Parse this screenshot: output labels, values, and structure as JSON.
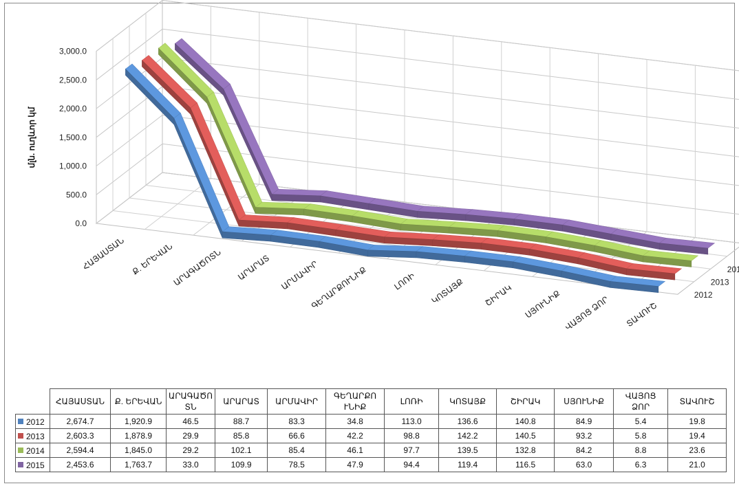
{
  "chart_data": {
    "type": "line",
    "subtype": "3d-line",
    "title": "",
    "ylabel": "մլն. ուղևոր կմ",
    "ylim": [
      0,
      3000
    ],
    "yticks": [
      "0.0",
      "500.0",
      "1,000.0",
      "1,500.0",
      "2,000.0",
      "2,500.0",
      "3,000.0"
    ],
    "ytick_values": [
      0,
      500,
      1000,
      1500,
      2000,
      2500,
      3000
    ],
    "categories": [
      "ՀԱՅԱՍՏԱՆ",
      "Ք. ԵՐԵՎԱՆ",
      "ԱՐԱԳԱԾՈՏՆ",
      "ԱՐԱՐԱՏ",
      "ԱՐՄԱՎԻՐ",
      "ԳԵՂԱՐՔՈՒՆԻՔ",
      "ԼՈՌԻ",
      "ԿՈՏԱՅՔ",
      "ՇԻՐԱԿ",
      "ՍՅՈՒՆԻՔ",
      "ՎԱՅՈՑ ՁՈՐ",
      "ՏԱՎՈՒՇ"
    ],
    "table_headers": [
      "ՀԱՅԱՍՏԱՆ",
      "Ք. ԵՐԵՎԱՆ",
      "ԱՐԱԳԱԾՈ ՏՆ",
      "ԱՐԱՐԱՏ",
      "ԱՐՄԱՎԻՐ",
      "ԳԵՂԱՐՔՈ ՒՆԻՔ",
      "ԼՈՌԻ",
      "ԿՈՏԱՅՔ",
      "ՇԻՐԱԿ",
      "ՍՅՈՒՆԻՔ",
      "ՎԱՅՈՑ ՁՈՐ",
      "ՏԱՎՈՒՇ"
    ],
    "grid": true,
    "legend": "table",
    "series": [
      {
        "name": "2012",
        "color": "#4F81BD",
        "values": [
          2674.7,
          1920.9,
          46.5,
          88.7,
          83.3,
          34.8,
          113.0,
          136.6,
          140.8,
          84.9,
          5.4,
          19.8
        ],
        "labels": [
          "2,674.7",
          "1,920.9",
          "46.5",
          "88.7",
          "83.3",
          "34.8",
          "113.0",
          "136.6",
          "140.8",
          "84.9",
          "5.4",
          "19.8"
        ]
      },
      {
        "name": "2013",
        "color": "#C0504D",
        "values": [
          2603.3,
          1878.9,
          29.9,
          85.8,
          66.6,
          42.2,
          98.8,
          142.2,
          140.5,
          93.2,
          5.8,
          19.4
        ],
        "labels": [
          "2,603.3",
          "1,878.9",
          "29.9",
          "85.8",
          "66.6",
          "42.2",
          "98.8",
          "142.2",
          "140.5",
          "93.2",
          "5.8",
          "19.4"
        ]
      },
      {
        "name": "2014",
        "color": "#9BBB59",
        "values": [
          2594.4,
          1845.0,
          29.2,
          102.1,
          85.4,
          46.1,
          97.7,
          139.5,
          132.8,
          84.2,
          8.8,
          23.6
        ],
        "labels": [
          "2,594.4",
          "1,845.0",
          "29.2",
          "102.1",
          "85.4",
          "46.1",
          "97.7",
          "139.5",
          "132.8",
          "84.2",
          "8.8",
          "23.6"
        ]
      },
      {
        "name": "2015",
        "color": "#8064A2",
        "values": [
          2453.6,
          1763.7,
          33.0,
          109.9,
          78.5,
          47.9,
          94.4,
          119.4,
          116.5,
          63.0,
          6.3,
          21.0
        ],
        "labels": [
          "2,453.6",
          "1,763.7",
          "33.0",
          "109.9",
          "78.5",
          "47.9",
          "94.4",
          "119.4",
          "116.5",
          "63.0",
          "6.3",
          "21.0"
        ]
      }
    ]
  }
}
